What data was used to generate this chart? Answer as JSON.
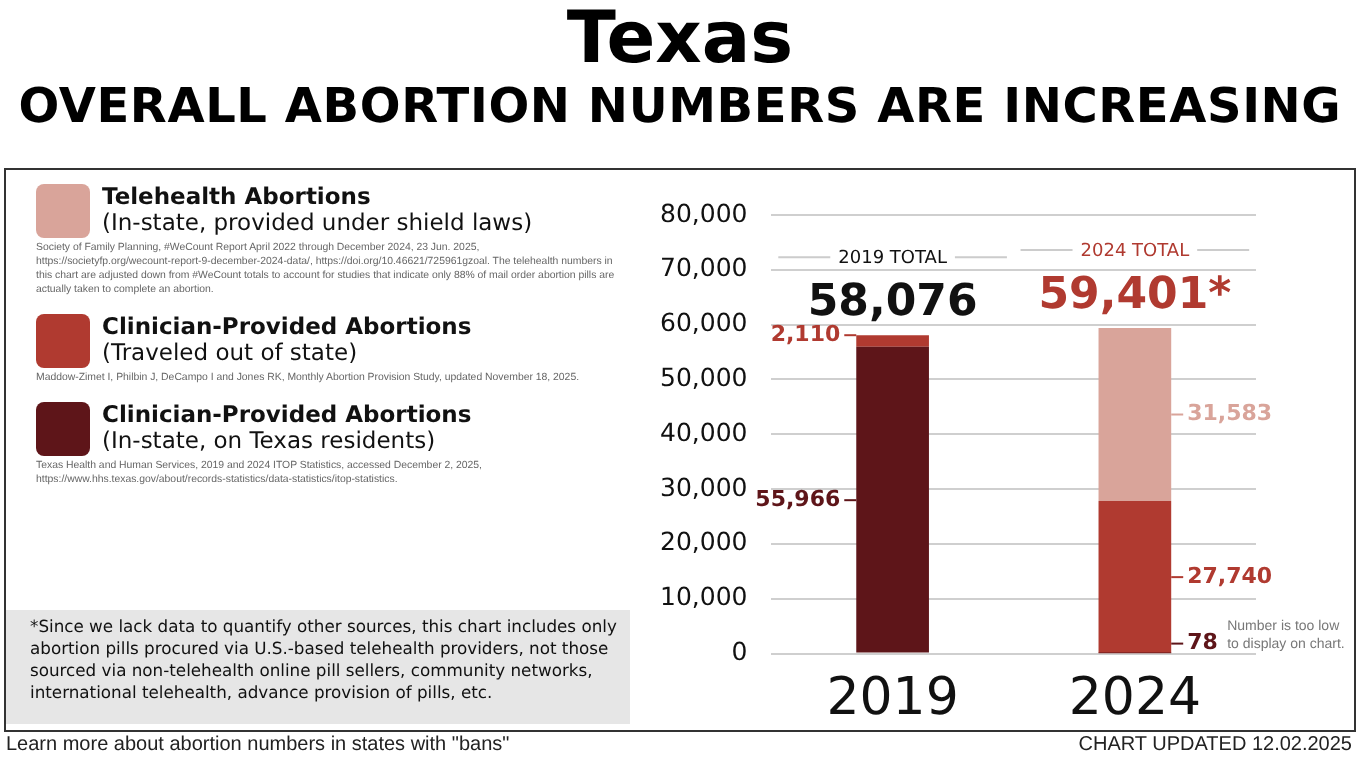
{
  "chart_data": {
    "type": "bar",
    "title": "Texas",
    "subtitle": "OVERALL ABORTION NUMBERS ARE INCREASING",
    "categories": [
      "2019",
      "2024"
    ],
    "stacked": true,
    "series": [
      {
        "name": "Clinician-Provided Abortions (In-state, on Texas residents)",
        "color": "#5e1519",
        "values": [
          55966,
          78
        ],
        "value_labels": [
          "55,966",
          "78"
        ]
      },
      {
        "name": "Clinician-Provided Abortions (Traveled out of state)",
        "color": "#b03a30",
        "values": [
          2110,
          27740
        ],
        "value_labels": [
          "2,110",
          "27,740"
        ]
      },
      {
        "name": "Telehealth Abortions (In-state, provided under shield laws)",
        "color": "#d9a49a",
        "values": [
          null,
          31583
        ],
        "value_labels": [
          null,
          "31,583"
        ]
      }
    ],
    "totals": [
      "58,076",
      "59,401*"
    ],
    "ylim": [
      0,
      80000
    ],
    "yticks": [
      0,
      {
        "value": 10000,
        "label": "10,000"
      },
      {
        "value": 20000,
        "label": "20,000"
      },
      {
        "value": 30000,
        "label": "30,000"
      },
      {
        "value": 40000,
        "label": "40,000"
      },
      {
        "value": 50000,
        "label": "50,000"
      },
      {
        "value": 60000,
        "label": "60,000"
      },
      {
        "value": 70000,
        "label": "70,000"
      },
      {
        "value": 80000,
        "label": "80,000"
      }
    ],
    "grid": "y",
    "legend": "left",
    "annotations": [
      "Texas Health and Human Services, 2019 and 2024 ITOP Statistics, accessed December 2, 2025, https://www.hhs.texas.gov/about/records-statistics/data-statistics/itop-statistics.",
      "Maddow-Zimet I, Philbin J, DeCampo I and Jones RK, Monthly Abortion Provision Study, updated November 18, 2025.",
      "Society of Family Planning, #WeCount Report April 2022 through December 2024, 23 Jun. 2025, https://societyfp.org/wecount-report-9-december-2024-data/, https://doi.org/10.46621/725961gzoal. The telehealth numbers in this chart are adjusted down from #WeCount totals to account for studies that indicate only 88% of mail order abortion pills are actually taken to complete an abortion.",
      "*Since we lack data to quantify other sources, this chart includes only abortion pills procured via U.S.-based telehealth providers, not those sourced via non-telehealth online pill sellers, community networks, international telehealth, advance provision of pills, etc.",
      "Learn more about abortion numbers in states with \"bans\"",
      "CHART UPDATED 12.02.2025",
      "2019 TOTAL",
      "2024 TOTAL",
      "Number is too low to display on chart."
    ]
  }
}
